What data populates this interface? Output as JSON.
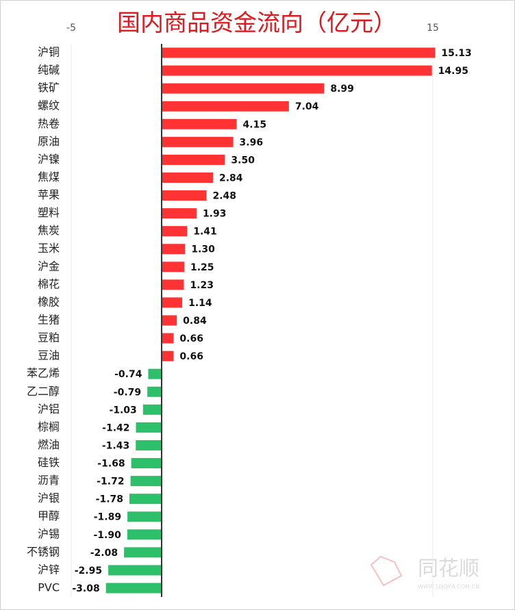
{
  "chart_data": {
    "type": "hbar",
    "title": "国内商品资金流向（亿元）",
    "categories": [
      "沪铜",
      "纯碱",
      "铁矿",
      "螺纹",
      "热卷",
      "原油",
      "沪镍",
      "焦煤",
      "苹果",
      "塑料",
      "焦炭",
      "玉米",
      "沪金",
      "棉花",
      "橡胶",
      "生猪",
      "豆粕",
      "豆油",
      "苯乙烯",
      "乙二醇",
      "沪铝",
      "棕榈",
      "燃油",
      "硅铁",
      "沥青",
      "沪银",
      "甲醇",
      "沪锡",
      "不锈钢",
      "沪锌",
      "PVC"
    ],
    "values": [
      15.13,
      14.95,
      8.99,
      7.04,
      4.15,
      3.96,
      3.5,
      2.84,
      2.48,
      1.93,
      1.41,
      1.3,
      1.25,
      1.23,
      1.14,
      0.84,
      0.66,
      0.66,
      -0.74,
      -0.79,
      -1.03,
      -1.42,
      -1.43,
      -1.68,
      -1.72,
      -1.78,
      -1.89,
      -1.9,
      -2.08,
      -2.95,
      -3.08
    ],
    "value_labels": [
      "15.13",
      "14.95",
      "8.99",
      "7.04",
      "4.15",
      "3.96",
      "3.50",
      "2.84",
      "2.48",
      "1.93",
      "1.41",
      "1.30",
      "1.25",
      "1.23",
      "1.14",
      "0.84",
      "0.66",
      "0.66",
      "-0.74",
      "-0.79",
      "-1.03",
      "-1.42",
      "-1.43",
      "-1.68",
      "-1.72",
      "-1.78",
      "-1.89",
      "-1.90",
      "-2.08",
      "-2.95",
      "-3.08"
    ],
    "positive_color": "#ff3333",
    "negative_color": "#2ebf6b",
    "xlim": [
      -5,
      15
    ],
    "xticks": [
      -5,
      15
    ]
  },
  "watermark": {
    "brand": "同花顺",
    "url": "WWW.10JQKA.COM.CN"
  }
}
